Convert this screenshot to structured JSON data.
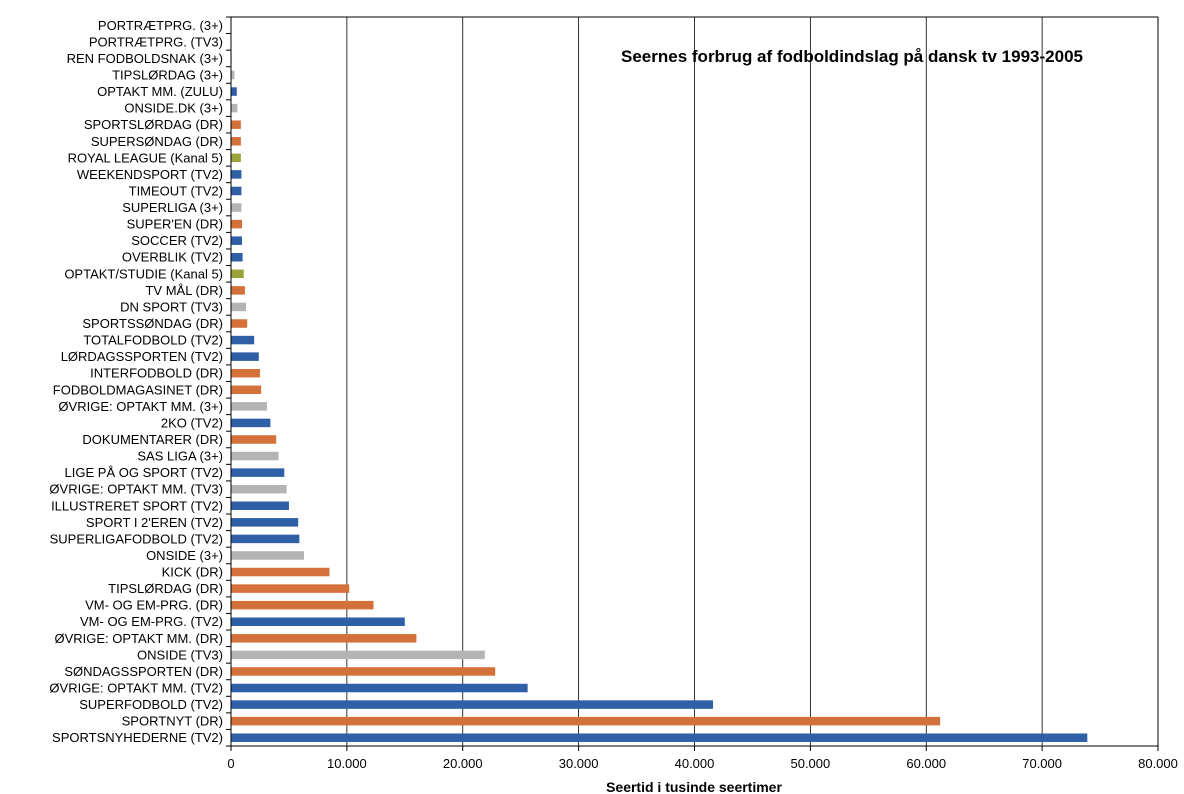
{
  "chart_data": {
    "type": "bar",
    "orientation": "horizontal",
    "title": "Seernes forbrug af fodboldindslag på dansk tv 1993-2005",
    "xlabel": "Seertid i tusinde seertimer",
    "ylabel": "",
    "xlim": [
      0,
      80000
    ],
    "x_ticks": [
      "0",
      "10.000",
      "20.000",
      "30.000",
      "40.000",
      "50.000",
      "60.000",
      "70.000",
      "80.000"
    ],
    "grid": "vertical",
    "colors": {
      "DR": "#d4703a",
      "TV2": "#2f5fa7",
      "3+/TV3": "#b4b4b4",
      "Kanal 5": "#9aa33a",
      "Zulu": "#2f5fa7"
    },
    "categories": [
      "SPORTSNYHEDERNE (TV2)",
      "SPORTNYT (DR)",
      "SUPERFODBOLD (TV2)",
      "ØVRIGE: OPTAKT MM. (TV2)",
      "SØNDAGSSPORTEN (DR)",
      "ONSIDE (TV3)",
      "ØVRIGE: OPTAKT MM. (DR)",
      "VM- OG EM-PRG. (TV2)",
      "VM- OG EM-PRG. (DR)",
      "TIPSLØRDAG (DR)",
      "KICK (DR)",
      "ONSIDE (3+)",
      "SUPERLIGAFODBOLD (TV2)",
      "SPORT I 2'EREN (TV2)",
      "ILLUSTRERET SPORT (TV2)",
      "ØVRIGE: OPTAKT MM. (TV3)",
      "LIGE PÅ OG SPORT (TV2)",
      "SAS LIGA (3+)",
      "DOKUMENTARER (DR)",
      "2KO (TV2)",
      "ØVRIGE: OPTAKT MM. (3+)",
      "FODBOLDMAGASINET (DR)",
      "INTERFODBOLD (DR)",
      "LØRDAGSSPORTEN (TV2)",
      "TOTALFODBOLD (TV2)",
      "SPORTSSØNDAG (DR)",
      "DN SPORT (TV3)",
      "TV MÅL (DR)",
      "OPTAKT/STUDIE (Kanal 5)",
      "OVERBLIK (TV2)",
      "SOCCER (TV2)",
      "SUPER'EN (DR)",
      "SUPERLIGA (3+)",
      "TIMEOUT (TV2)",
      "WEEKENDSPORT (TV2)",
      "ROYAL LEAGUE (Kanal 5)",
      "SUPERSØNDAG (DR)",
      "SPORTSLØRDAG (DR)",
      "ONSIDE.DK (3+)",
      "OPTAKT MM. (ZULU)",
      "TIPSLØRDAG (3+)",
      "REN FODBOLDSNAK (3+)",
      "PORTRÆTPRG. (TV3)",
      "PORTRÆTPRG. (3+)"
    ],
    "values": [
      73900,
      61200,
      41600,
      25600,
      22800,
      21900,
      16000,
      15000,
      12300,
      10200,
      8500,
      6300,
      5900,
      5800,
      5000,
      4800,
      4600,
      4100,
      3900,
      3400,
      3100,
      2600,
      2500,
      2400,
      2000,
      1400,
      1300,
      1200,
      1100,
      1000,
      950,
      950,
      900,
      900,
      900,
      850,
      850,
      850,
      550,
      500,
      300,
      60,
      40,
      30
    ],
    "channel_groups": [
      "TV2",
      "DR",
      "TV2",
      "TV2",
      "DR",
      "3+/TV3",
      "DR",
      "TV2",
      "DR",
      "DR",
      "DR",
      "3+/TV3",
      "TV2",
      "TV2",
      "TV2",
      "3+/TV3",
      "TV2",
      "3+/TV3",
      "DR",
      "TV2",
      "3+/TV3",
      "DR",
      "DR",
      "TV2",
      "TV2",
      "DR",
      "3+/TV3",
      "DR",
      "Kanal 5",
      "TV2",
      "TV2",
      "DR",
      "3+/TV3",
      "TV2",
      "TV2",
      "Kanal 5",
      "DR",
      "DR",
      "3+/TV3",
      "Zulu",
      "3+/TV3",
      "3+/TV3",
      "3+/TV3",
      "3+/TV3"
    ]
  }
}
